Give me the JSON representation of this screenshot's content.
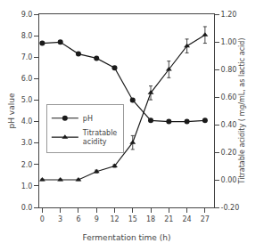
{
  "chart_data": {
    "type": "line",
    "xlabel": "Fermentation time (h)",
    "ylabel": "pH value",
    "y2label": "Titratable acidity ( mg/mL, as lactic acid)",
    "x": [
      0,
      3,
      6,
      9,
      12,
      15,
      18,
      21,
      24,
      27
    ],
    "series": [
      {
        "name": "pH",
        "color": "#1a1a1a",
        "marker": "circle",
        "line_style": "solid",
        "values": [
          7.65,
          7.7,
          7.15,
          6.95,
          6.5,
          5.0,
          4.05,
          4.0,
          4.0,
          4.05
        ],
        "errors": [
          0.05,
          0.06,
          0.06,
          0.05,
          0.06,
          0.08,
          0.05,
          0.05,
          0.05,
          0.05
        ]
      },
      {
        "name": "Titratable\nacidity",
        "color": "#1a1a1a",
        "marker": "triangle-up",
        "line_style": "solid",
        "axis": "y2",
        "values": [
          0.0,
          0.0,
          0.0,
          0.06,
          0.1,
          0.27,
          0.63,
          0.8,
          0.97,
          1.05
        ],
        "errors": [
          0.005,
          0.005,
          0.005,
          0.01,
          0.01,
          0.05,
          0.05,
          0.06,
          0.05,
          0.06
        ]
      }
    ],
    "xlim": [
      -0.5,
      28.5
    ],
    "xticks": [
      0,
      3,
      6,
      9,
      12,
      15,
      18,
      21,
      24,
      27
    ],
    "ylim": [
      0.0,
      9.0
    ],
    "yticks": [
      {
        "value": 0.0,
        "label": "0.0"
      },
      {
        "value": 1.0,
        "label": "1.0"
      },
      {
        "value": 2.0,
        "label": "2.0"
      },
      {
        "value": 3.0,
        "label": "3.0"
      },
      {
        "value": 4.0,
        "label": "4.0"
      },
      {
        "value": 5.0,
        "label": "5.0"
      },
      {
        "value": 6.0,
        "label": "6.0"
      },
      {
        "value": 7.0,
        "label": "7.0"
      },
      {
        "value": 8.0,
        "label": "8.0"
      },
      {
        "value": 9.0,
        "label": "9.0"
      }
    ],
    "y2lim": [
      -0.2,
      1.2
    ],
    "y2ticks": [
      {
        "value": -0.2,
        "label": "-0.20"
      },
      {
        "value": 0.0,
        "label": "0.00"
      },
      {
        "value": 0.2,
        "label": "0.20"
      },
      {
        "value": 0.4,
        "label": "0.40"
      },
      {
        "value": 0.6,
        "label": "0.60"
      },
      {
        "value": 0.8,
        "label": "0.80"
      },
      {
        "value": 1.0,
        "label": "1.00"
      },
      {
        "value": 1.2,
        "label": "1.20"
      }
    ],
    "grid": false,
    "legend": "lower left"
  }
}
